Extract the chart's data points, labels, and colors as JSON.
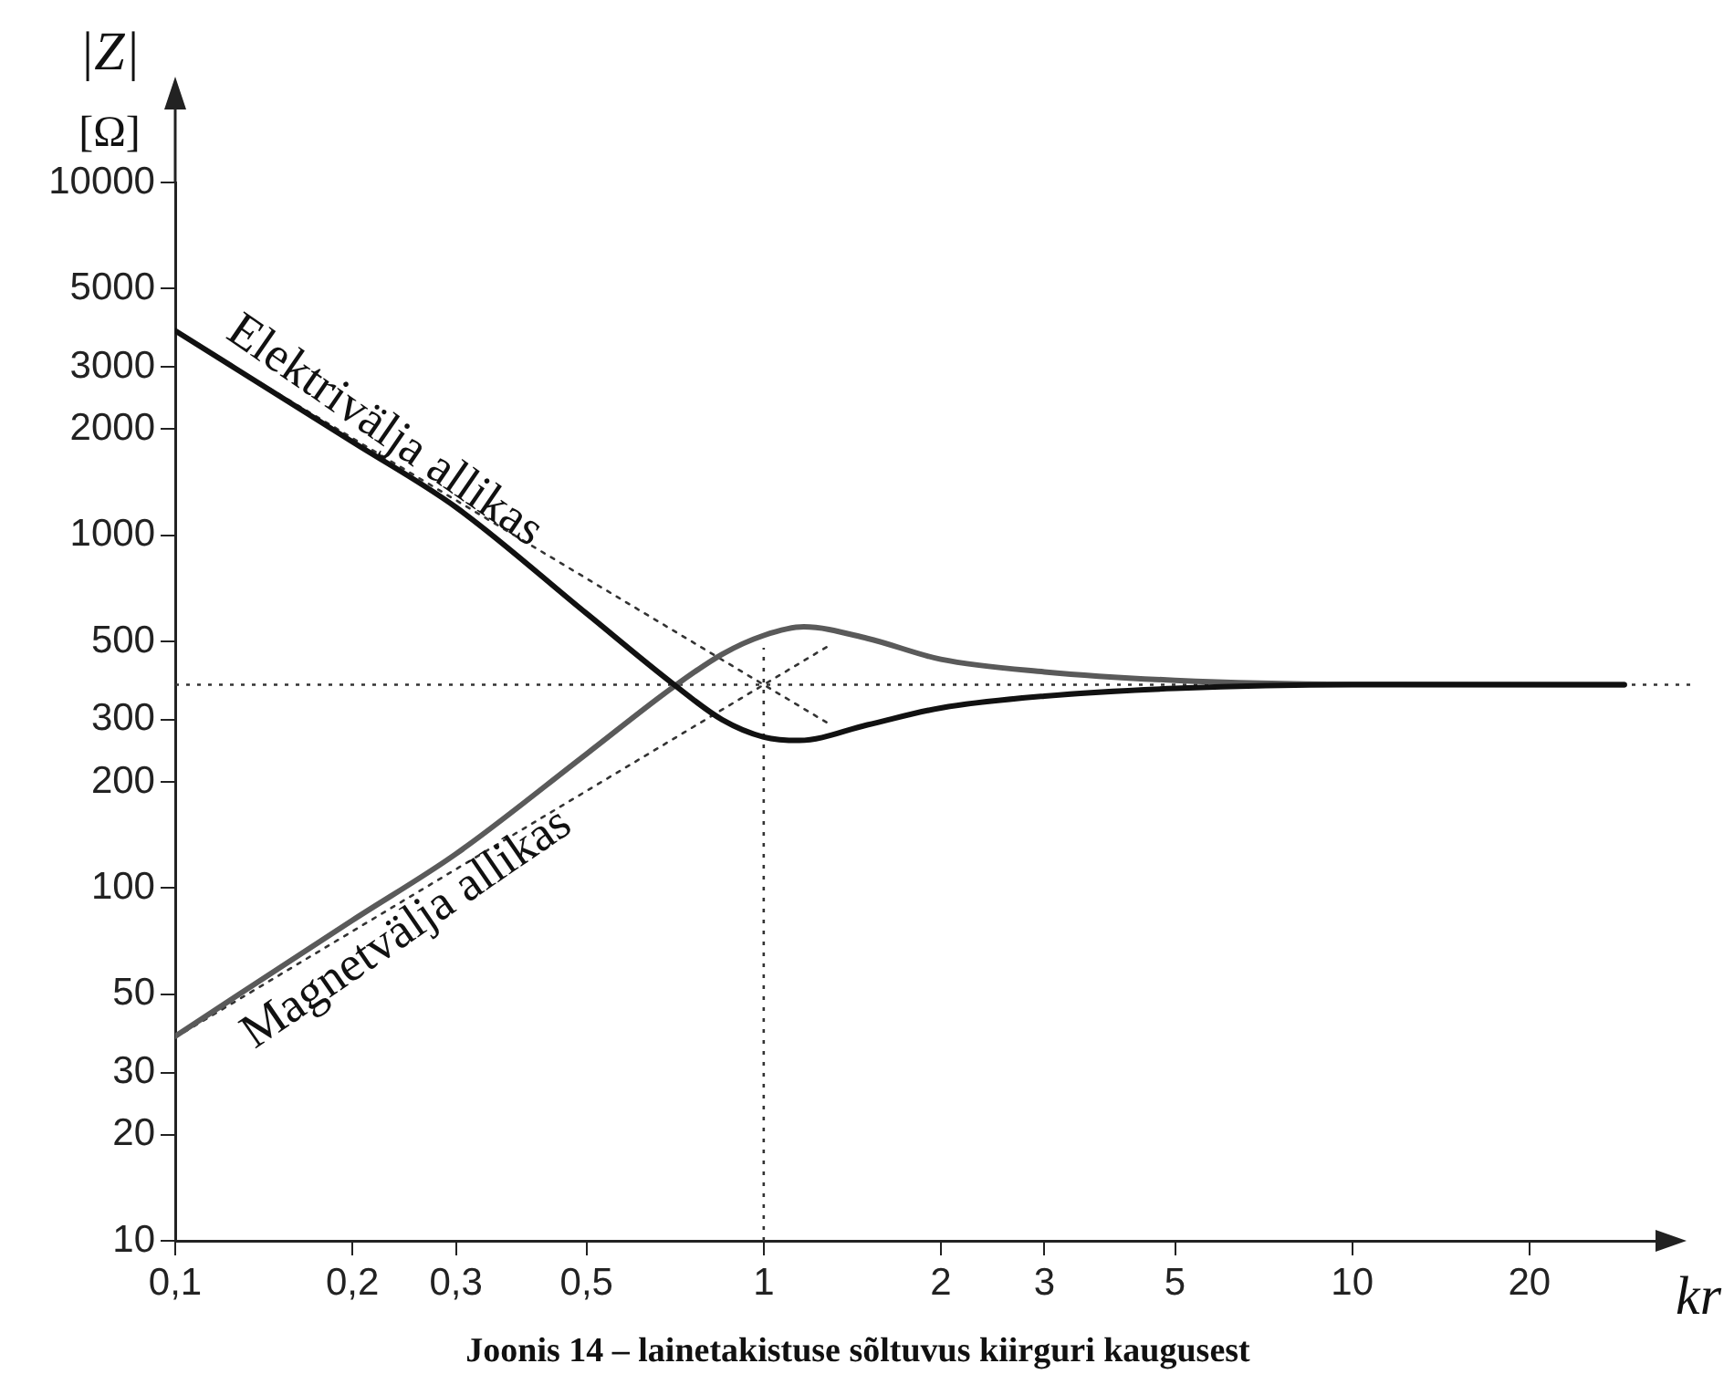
{
  "chart_data": {
    "type": "line",
    "title": "Joonis 14 – lainetakistuse sõltuvus kiirguri kaugusest",
    "xlabel": "kr",
    "ylabel": "|Z| [Ω]",
    "log": "xy",
    "grid": false,
    "legend": false,
    "marker": "none",
    "xlim": [
      0.1,
      33
    ],
    "ylim": [
      10,
      10000
    ],
    "xticks": [
      {
        "value": 0.1,
        "label": "0,1"
      },
      {
        "value": 0.2,
        "label": "0,2"
      },
      {
        "value": 0.3,
        "label": "0,3"
      },
      {
        "value": 0.5,
        "label": "0,5"
      },
      1,
      2,
      3,
      5,
      10,
      20
    ],
    "yticks": [
      10,
      20,
      30,
      50,
      100,
      200,
      300,
      500,
      1000,
      2000,
      3000,
      5000,
      10000
    ],
    "series": [
      {
        "name": "Elektrivälja allikas",
        "color": "#111111",
        "line_style": "solid",
        "x": [
          0.1,
          0.2,
          0.3,
          0.5,
          0.7,
          0.85,
          1,
          1.15,
          1.5,
          2,
          3,
          5,
          10,
          29
        ],
        "values": [
          3800,
          1840,
          1200,
          600,
          380,
          300,
          268,
          262,
          290,
          324,
          350,
          368,
          377,
          377
        ]
      },
      {
        "name": "Magnetvälja allikas",
        "color": "#5a5a5a",
        "line_style": "solid",
        "x": [
          0.1,
          0.2,
          0.3,
          0.5,
          0.7,
          0.85,
          1,
          1.17,
          1.5,
          2,
          3,
          5,
          10,
          29
        ],
        "values": [
          38,
          81,
          125,
          240,
          370,
          460,
          520,
          550,
          510,
          445,
          410,
          388,
          378,
          377
        ]
      },
      {
        "type": "line",
        "color": "#333333",
        "line_style": "dotted",
        "x": [
          0.1,
          1.3
        ],
        "values": [
          3770,
          290
        ]
      },
      {
        "type": "line",
        "color": "#333333",
        "line_style": "dotted",
        "x": [
          0.1,
          1.3
        ],
        "values": [
          37.7,
          490
        ]
      }
    ],
    "ref_lines": [
      {
        "axis": "y",
        "value": 377,
        "color": "#333333",
        "line_style": "dotted"
      },
      {
        "axis": "x",
        "value": 1,
        "color": "#333333",
        "line_style": "dotted"
      }
    ]
  }
}
